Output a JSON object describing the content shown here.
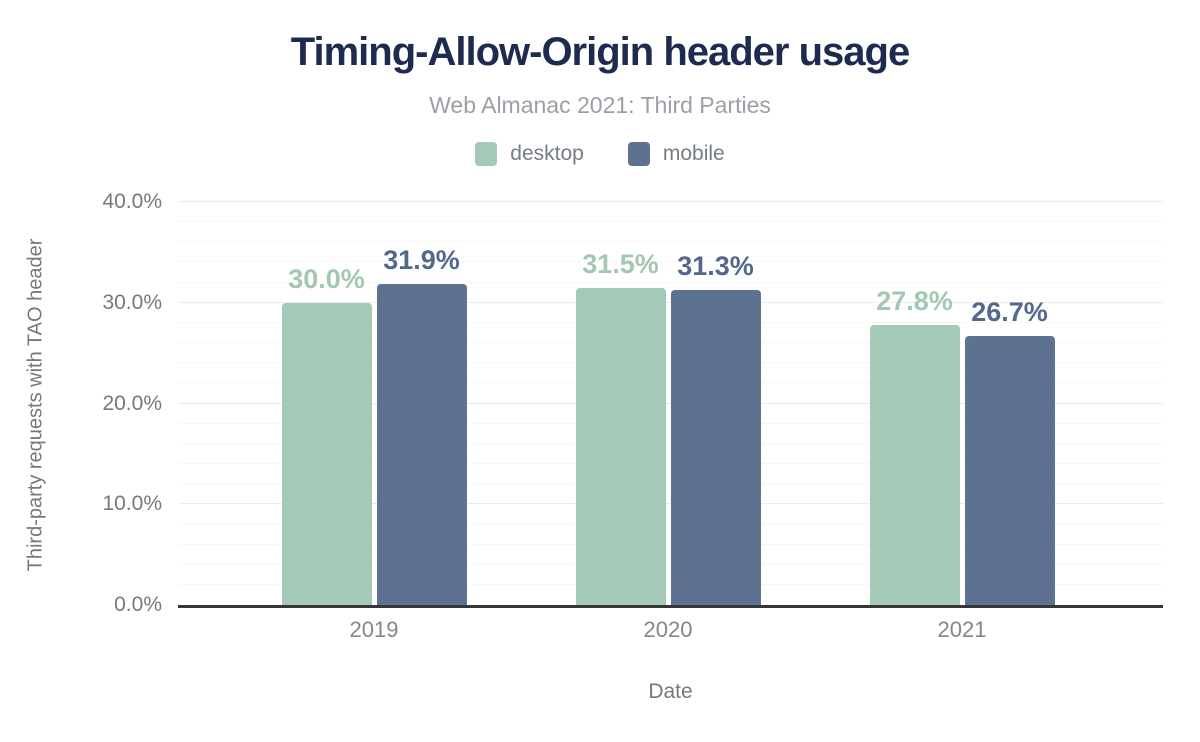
{
  "figure": {
    "title": "Timing-Allow-Origin header usage",
    "subtitle": "Web Almanac 2021: Third Parties"
  },
  "chart_data": {
    "type": "bar",
    "title": "Timing-Allow-Origin header usage",
    "subtitle": "Web Almanac 2021: Third Parties",
    "categories": [
      "2019",
      "2020",
      "2021"
    ],
    "series": [
      {
        "name": "desktop",
        "color": "#a4cab7",
        "label_color": "#a2c8b4",
        "values": [
          30.0,
          31.5,
          27.8
        ],
        "value_labels": [
          "30.0%",
          "31.5%",
          "27.8%"
        ]
      },
      {
        "name": "mobile",
        "color": "#5d7190",
        "label_color": "#53688c",
        "values": [
          31.9,
          31.3,
          26.7
        ],
        "value_labels": [
          "31.9%",
          "31.3%",
          "26.7%"
        ]
      }
    ],
    "xlabel": "Date",
    "ylabel": "Third-party requests with TAO header",
    "ylim": [
      0,
      40
    ],
    "yticks": [
      {
        "value": 0,
        "label": "0.0%"
      },
      {
        "value": 10,
        "label": "10.0%"
      },
      {
        "value": 20,
        "label": "20.0%"
      },
      {
        "value": 30,
        "label": "30.0%"
      },
      {
        "value": 40,
        "label": "40.0%"
      }
    ],
    "grid": {
      "minor_step_pct": 2,
      "major_step_pct": 10,
      "enabled": true
    },
    "legend_position": "top"
  }
}
